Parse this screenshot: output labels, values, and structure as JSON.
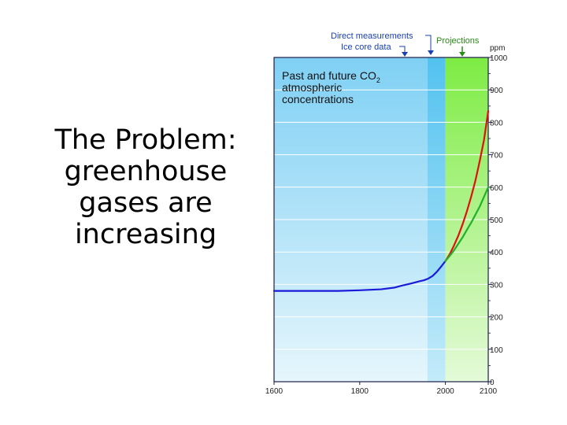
{
  "slide": {
    "title_lines": [
      "The Problem:",
      "greenhouse",
      "gases are",
      "increasing"
    ]
  },
  "chart_data": {
    "type": "line",
    "title_lines": [
      "Past and future CO",
      "atmospheric",
      "concentrations"
    ],
    "title_subscript": "2",
    "ylabel": "ppm",
    "xlim": [
      1600,
      2100
    ],
    "ylim": [
      0,
      1000
    ],
    "x_ticks": [
      1600,
      1800,
      2000,
      2100
    ],
    "y_ticks": [
      0,
      100,
      200,
      300,
      400,
      500,
      600,
      700,
      800,
      900,
      1000
    ],
    "grid": true,
    "regions": [
      {
        "label": "Ice core data",
        "from": 1600,
        "to": 1958,
        "color": "#86d4f5"
      },
      {
        "label": "Direct measurements",
        "from": 1958,
        "to": 2000,
        "color": "#5fc6f0"
      },
      {
        "label": "Projections",
        "from": 2000,
        "to": 2100,
        "color": "#8af04e"
      }
    ],
    "series": [
      {
        "color": "#1a1ad8",
        "x": [
          1600,
          1700,
          1750,
          1800,
          1850,
          1880,
          1900,
          1920,
          1940,
          1950,
          1960,
          1970,
          1980,
          1990,
          2000
        ],
        "y": [
          280,
          280,
          280,
          282,
          285,
          290,
          297,
          303,
          310,
          313,
          318,
          326,
          339,
          355,
          372
        ]
      },
      {
        "color": "#e01010",
        "x": [
          2000,
          2010,
          2020,
          2030,
          2040,
          2050,
          2060,
          2070,
          2080,
          2090,
          2100
        ],
        "y": [
          372,
          393,
          420,
          450,
          485,
          525,
          570,
          620,
          680,
          745,
          835
        ]
      },
      {
        "color": "#22b02a",
        "x": [
          2000,
          2010,
          2020,
          2030,
          2040,
          2050,
          2060,
          2070,
          2080,
          2090,
          2100
        ],
        "y": [
          372,
          388,
          405,
          425,
          445,
          468,
          490,
          515,
          540,
          570,
          600
        ]
      }
    ]
  },
  "colors": {
    "grid": "#ffffff",
    "frame": "#1d1d4a",
    "annotation": "#1a3fae",
    "projection_label": "#2a8a1a"
  }
}
